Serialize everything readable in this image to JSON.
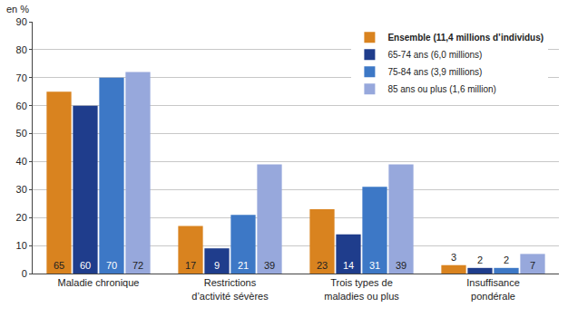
{
  "chart_data": {
    "type": "bar",
    "y_label": "en %",
    "categories": [
      "Maladie chronique",
      "Restrictions\nd’activité sévères",
      "Trois types de\nmaladies ou plus",
      "Insuffisance\npondérale"
    ],
    "series": [
      {
        "name": "Ensemble (11,4 millions d’individus)",
        "color": "#d9831f",
        "values": [
          65,
          17,
          23,
          3
        ]
      },
      {
        "name": "65-74 ans (6,0 millions)",
        "color": "#1f3d8c",
        "values": [
          60,
          9,
          14,
          2
        ]
      },
      {
        "name": "75-84 ans (3,9 millions)",
        "color": "#3d78c6",
        "values": [
          70,
          21,
          31,
          2
        ]
      },
      {
        "name": "85 ans ou plus (1,6 million)",
        "color": "#97a8dc",
        "values": [
          72,
          39,
          39,
          7
        ]
      }
    ],
    "ylim": [
      0,
      90
    ],
    "yticks": [
      0,
      10,
      20,
      30,
      40,
      50,
      60,
      70,
      80,
      90
    ],
    "grid": true,
    "legend": "upper right",
    "data_labels": true
  }
}
